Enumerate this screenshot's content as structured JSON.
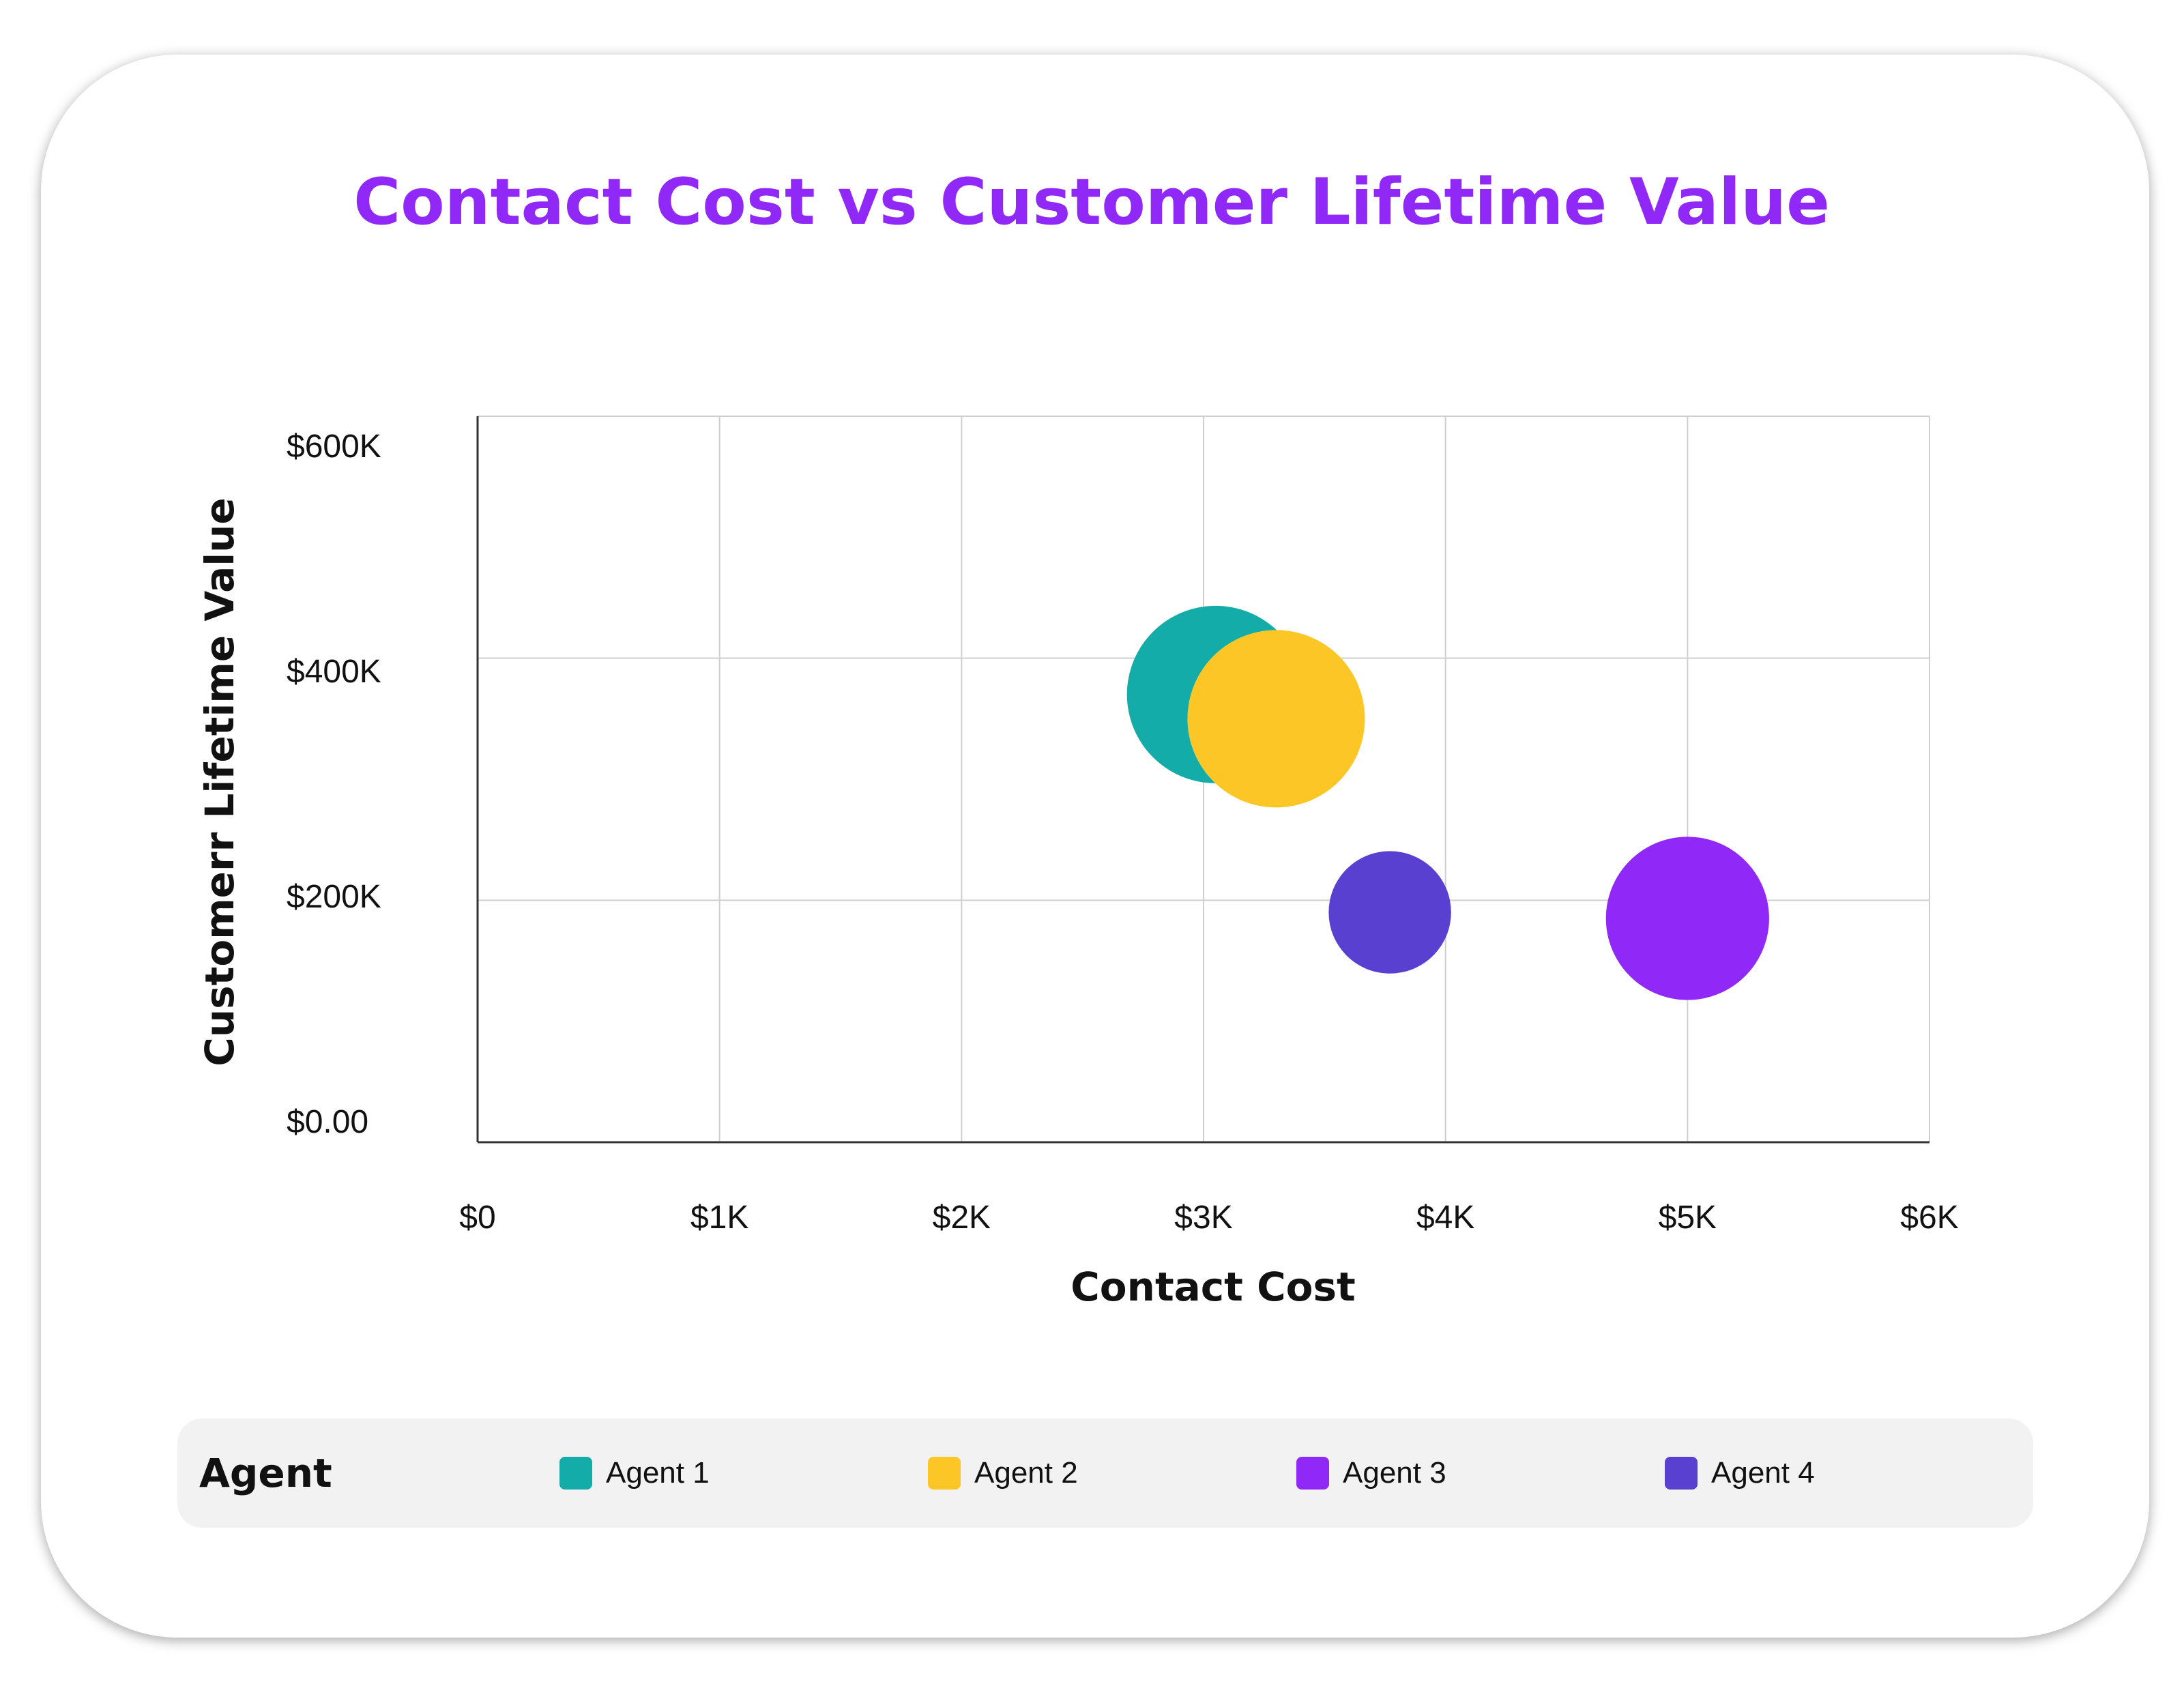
{
  "chart_data": {
    "type": "bubble",
    "title": "Contact Cost vs Customer Lifetime Value",
    "xlabel": "Contact Cost",
    "ylabel": "Customerr Lifetime Value",
    "xlim": [
      0,
      6000
    ],
    "ylim": [
      0,
      600000
    ],
    "x_ticks": [
      {
        "value": 0,
        "label": "$0"
      },
      {
        "value": 1000,
        "label": "$1K"
      },
      {
        "value": 2000,
        "label": "$2K"
      },
      {
        "value": 3000,
        "label": "$3K"
      },
      {
        "value": 4000,
        "label": "$4K"
      },
      {
        "value": 5000,
        "label": "$5K"
      },
      {
        "value": 6000,
        "label": "$6K"
      }
    ],
    "y_ticks": [
      {
        "value": 0,
        "label": "$0.00"
      },
      {
        "value": 200000,
        "label": "$200K"
      },
      {
        "value": 400000,
        "label": "$400K"
      },
      {
        "value": 600000,
        "label": "$600K"
      }
    ],
    "grid": true,
    "legend_title": "Agent",
    "legend_position": "bottom",
    "series": [
      {
        "name": "Agent 1",
        "color": "#14aca9",
        "x": 3050,
        "y": 370000,
        "size": 1.0
      },
      {
        "name": "Agent 2",
        "color": "#fdc627",
        "x": 3300,
        "y": 350000,
        "size": 1.0
      },
      {
        "name": "Agent 3",
        "color": "#9029f7",
        "x": 5000,
        "y": 185000,
        "size": 0.92
      },
      {
        "name": "Agent 4",
        "color": "#5a40d1",
        "x": 3770,
        "y": 190000,
        "size": 0.69
      }
    ]
  }
}
